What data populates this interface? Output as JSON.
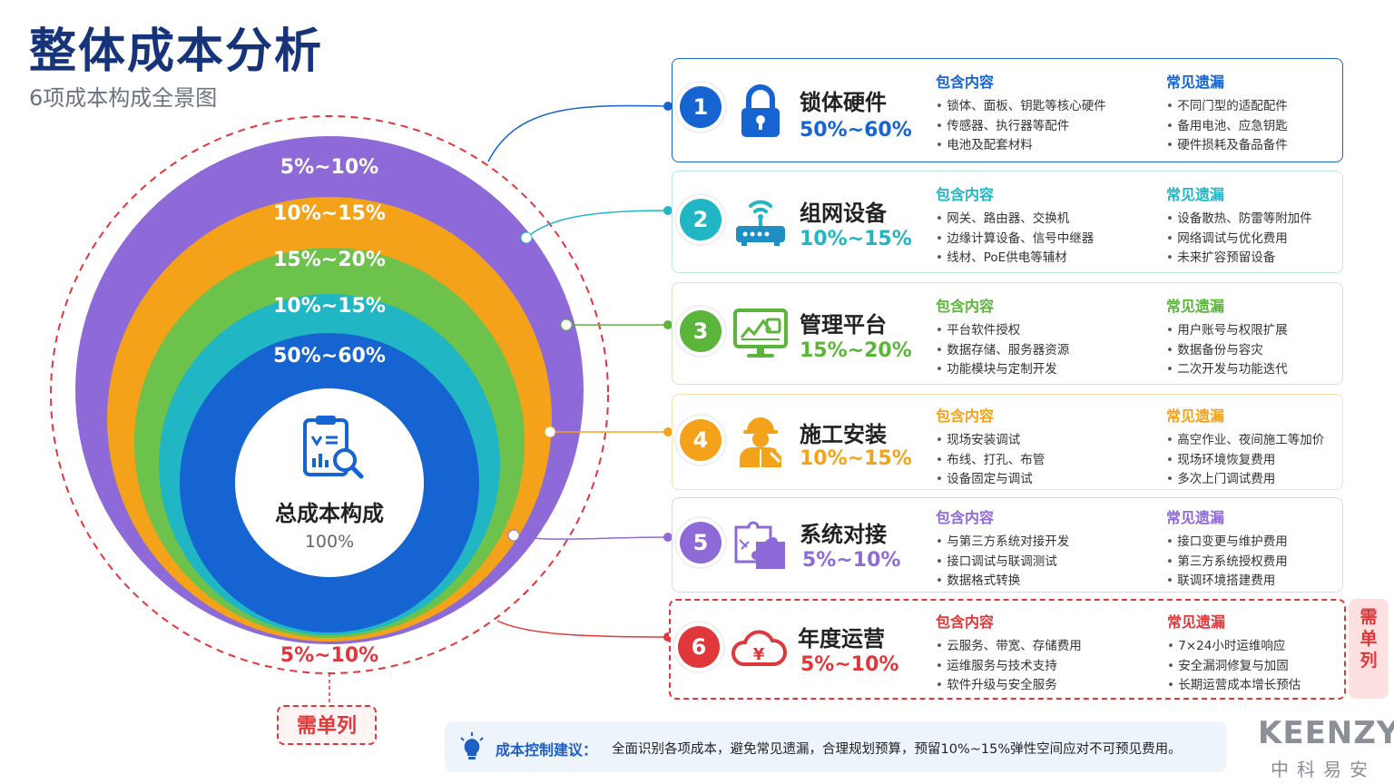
{
  "header": {
    "title": "整体成本分析",
    "subtitle": "6项成本构成全景图"
  },
  "center": {
    "title": "总成本构成",
    "value": "100%"
  },
  "rings": [
    {
      "label": "5%~10%",
      "color": "#8d6ad8"
    },
    {
      "label": "10%~15%",
      "color": "#f5a21b"
    },
    {
      "label": "15%~20%",
      "color": "#6cc24a"
    },
    {
      "label": "10%~15%",
      "color": "#21b6c3"
    },
    {
      "label": "50%~60%",
      "color": "#1663d2"
    }
  ],
  "outer_ring": {
    "label": "5%~10%",
    "tag": "需单列",
    "color": "#e0373b"
  },
  "cards": [
    {
      "num": "1",
      "name": "锁体硬件",
      "pct": "50%~60%",
      "color": "#1663d2",
      "icon": "lock-icon",
      "include_title": "包含内容",
      "include": [
        "锁体、面板、钥匙等核心硬件",
        "传感器、执行器等配件",
        "电池及配套材料"
      ],
      "miss_title": "常见遗漏",
      "miss": [
        "不同门型的适配配件",
        "备用电池、应急钥匙",
        "硬件损耗及备品备件"
      ]
    },
    {
      "num": "2",
      "name": "组网设备",
      "pct": "10%~15%",
      "color": "#21b6c3",
      "icon": "router-icon",
      "include_title": "包含内容",
      "include": [
        "网关、路由器、交换机",
        "边缘计算设备、信号中继器",
        "线材、PoE供电等辅材"
      ],
      "miss_title": "常见遗漏",
      "miss": [
        "设备散热、防雷等附加件",
        "网络调试与优化费用",
        "未来扩容预留设备"
      ]
    },
    {
      "num": "3",
      "name": "管理平台",
      "pct": "15%~20%",
      "color": "#5bb53b",
      "icon": "monitor-chart-icon",
      "include_title": "包含内容",
      "include": [
        "平台软件授权",
        "数据存储、服务器资源",
        "功能模块与定制开发"
      ],
      "miss_title": "常见遗漏",
      "miss": [
        "用户账号与权限扩展",
        "数据备份与容灾",
        "二次开发与功能迭代"
      ]
    },
    {
      "num": "4",
      "name": "施工安装",
      "pct": "10%~15%",
      "color": "#f5a21b",
      "icon": "worker-icon",
      "include_title": "包含内容",
      "include": [
        "现场安装调试",
        "布线、打孔、布管",
        "设备固定与调试"
      ],
      "miss_title": "常见遗漏",
      "miss": [
        "高空作业、夜间施工等加价",
        "现场环境恢复费用",
        "多次上门调试费用"
      ]
    },
    {
      "num": "5",
      "name": "系统对接",
      "pct": "5%~10%",
      "color": "#8d6ad8",
      "icon": "puzzle-icon",
      "include_title": "包含内容",
      "include": [
        "与第三方系统对接开发",
        "接口调试与联调测试",
        "数据格式转换"
      ],
      "miss_title": "常见遗漏",
      "miss": [
        "接口变更与维护费用",
        "第三方系统授权费用",
        "联调环境搭建费用"
      ]
    },
    {
      "num": "6",
      "name": "年度运营",
      "pct": "5%~10%",
      "color": "#e0373b",
      "icon": "cloud-yen-icon",
      "include_title": "包含内容",
      "include": [
        "云服务、带宽、存储费用",
        "运维服务与技术支持",
        "软件升级与安全服务"
      ],
      "miss_title": "常见遗漏",
      "miss": [
        "7×24小时运维响应",
        "安全漏洞修复与加固",
        "长期运营成本增长预估"
      ]
    }
  ],
  "side_tag": [
    "需",
    "单",
    "列"
  ],
  "tip": {
    "label": "成本控制建议：",
    "text": "全面识别各项成本，避免常见遗漏，合理规划预算，预留10%~15%弹性空间应对不可预见费用。"
  },
  "brand": {
    "name": "KEENZY",
    "sub": "中科易安"
  }
}
